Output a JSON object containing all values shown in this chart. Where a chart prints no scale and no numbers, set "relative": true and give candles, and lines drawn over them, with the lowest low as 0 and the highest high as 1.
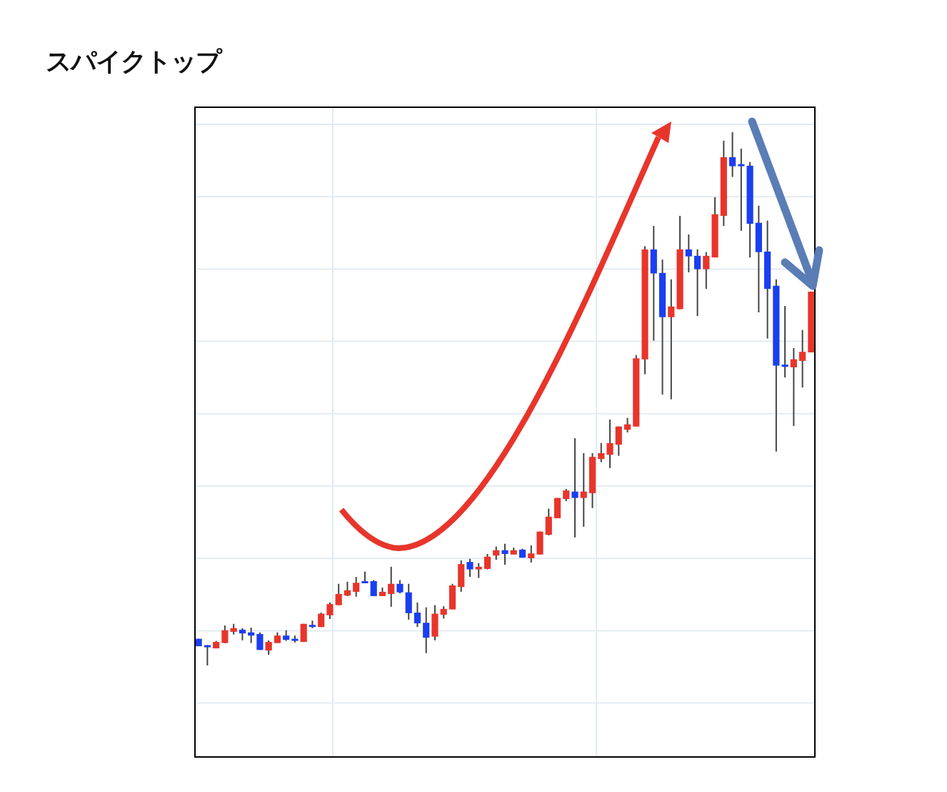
{
  "chart_data": {
    "type": "candlestick",
    "title": "スパイクトップ",
    "relative": true,
    "grid": true,
    "categories": [
      null,
      null,
      null,
      null,
      null,
      null,
      null,
      null,
      null,
      null,
      null,
      null,
      null,
      null,
      null,
      null,
      null,
      null,
      null,
      null,
      null,
      null,
      null,
      null,
      null,
      null,
      null,
      null,
      null,
      null,
      null,
      null,
      null,
      null,
      null,
      null,
      null,
      null,
      null,
      null,
      null,
      null,
      null,
      null,
      null,
      null,
      null,
      null,
      null,
      null,
      null,
      null,
      null,
      null,
      null,
      null,
      null,
      null,
      null,
      null,
      null,
      null,
      null,
      null,
      null,
      null,
      null,
      null,
      null,
      null,
      null
    ],
    "ohlc": [
      [
        0.05,
        0.05,
        0.036,
        0.036
      ],
      [
        0.038,
        0.038,
        0,
        0.034
      ],
      [
        0.032,
        0.046,
        0.032,
        0.044
      ],
      [
        0.042,
        0.075,
        0.042,
        0.066
      ],
      [
        0.063,
        0.078,
        0.058,
        0.07
      ],
      [
        0.067,
        0.07,
        0.047,
        0.06
      ],
      [
        0.062,
        0.071,
        0.042,
        0.056
      ],
      [
        0.059,
        0.062,
        0.029,
        0.029
      ],
      [
        0.028,
        0.047,
        0.02,
        0.044
      ],
      [
        0.042,
        0.062,
        0.042,
        0.056
      ],
      [
        0.056,
        0.066,
        0.046,
        0.048
      ],
      [
        0.05,
        0.056,
        0.043,
        0.046
      ],
      [
        0.044,
        0.078,
        0.044,
        0.078
      ],
      [
        0.075,
        0.084,
        0.07,
        0.072
      ],
      [
        0.072,
        0.099,
        0.072,
        0.097
      ],
      [
        0.094,
        0.118,
        0.087,
        0.115
      ],
      [
        0.113,
        0.153,
        0.113,
        0.134
      ],
      [
        0.131,
        0.157,
        0.13,
        0.141
      ],
      [
        0.138,
        0.166,
        0.129,
        0.155
      ],
      [
        0.158,
        0.176,
        0.154,
        0.154
      ],
      [
        0.158,
        0.16,
        0.13,
        0.13
      ],
      [
        0.13,
        0.146,
        0.13,
        0.138
      ],
      [
        0.134,
        0.185,
        0.11,
        0.153
      ],
      [
        0.153,
        0.16,
        0.135,
        0.137
      ],
      [
        0.137,
        0.153,
        0.086,
        0.098
      ],
      [
        0.099,
        0.118,
        0.072,
        0.079
      ],
      [
        0.08,
        0.109,
        0.023,
        0.052
      ],
      [
        0.054,
        0.113,
        0.047,
        0.097
      ],
      [
        0.095,
        0.111,
        0.088,
        0.106
      ],
      [
        0.105,
        0.153,
        0.105,
        0.15
      ],
      [
        0.147,
        0.197,
        0.138,
        0.19
      ],
      [
        0.194,
        0.2,
        0.166,
        0.18
      ],
      [
        0.18,
        0.192,
        0.164,
        0.185
      ],
      [
        0.181,
        0.209,
        0.18,
        0.204
      ],
      [
        0.206,
        0.223,
        0.198,
        0.216
      ],
      [
        0.216,
        0.228,
        0.189,
        0.209
      ],
      [
        0.208,
        0.221,
        0.208,
        0.216
      ],
      [
        0.217,
        0.219,
        0.202,
        0.202
      ],
      [
        0.201,
        0.225,
        0.193,
        0.21
      ],
      [
        0.208,
        0.251,
        0.208,
        0.251
      ],
      [
        0.245,
        0.294,
        0.244,
        0.279
      ],
      [
        0.276,
        0.314,
        0.276,
        0.314
      ],
      [
        0.312,
        0.331,
        0.308,
        0.328
      ],
      [
        0.326,
        0.426,
        0.24,
        0.314
      ],
      [
        0.314,
        0.398,
        0.26,
        0.326
      ],
      [
        0.323,
        0.398,
        0.295,
        0.391
      ],
      [
        0.387,
        0.417,
        0.381,
        0.398
      ],
      [
        0.395,
        0.461,
        0.37,
        0.417
      ],
      [
        0.414,
        0.448,
        0.393,
        0.448
      ],
      [
        0.442,
        0.464,
        0.437,
        0.452
      ],
      [
        0.448,
        0.582,
        0.448,
        0.576
      ],
      [
        0.574,
        0.786,
        0.546,
        0.78
      ],
      [
        0.78,
        0.824,
        0.609,
        0.735
      ],
      [
        0.736,
        0.761,
        0.508,
        0.653
      ],
      [
        0.653,
        0.724,
        0.499,
        0.673
      ],
      [
        0.668,
        0.843,
        0.668,
        0.78
      ],
      [
        0.78,
        0.808,
        0.737,
        0.767
      ],
      [
        0.768,
        0.78,
        0.655,
        0.743
      ],
      [
        0.743,
        0.775,
        0.706,
        0.768
      ],
      [
        0.765,
        0.878,
        0.765,
        0.846
      ],
      [
        0.843,
        0.984,
        0.824,
        0.953
      ],
      [
        0.953,
        1,
        0.916,
        0.936
      ],
      [
        0.937,
        0.969,
        0.815,
        0.936
      ],
      [
        0.937,
        0.944,
        0.765,
        0.828
      ],
      [
        0.83,
        0.862,
        0.662,
        0.775
      ],
      [
        0.776,
        0.834,
        0.613,
        0.706
      ],
      [
        0.712,
        0.724,
        0.401,
        0.562
      ],
      [
        0.564,
        0.674,
        0.54,
        0.56
      ],
      [
        0.559,
        0.595,
        0.449,
        0.574
      ],
      [
        0.571,
        0.629,
        0.521,
        0.588
      ],
      [
        0.587,
        0.701,
        0.587,
        0.701
      ]
    ],
    "colors": [
      "#1a3ff0",
      "#1a3ff0",
      "#e8352b",
      "#e8352b",
      "#e8352b",
      "#1a3ff0",
      "#1a3ff0",
      "#1a3ff0",
      "#e8352b",
      "#e8352b",
      "#1a3ff0",
      "#1a3ff0",
      "#e8352b",
      "#1a3ff0",
      "#e8352b",
      "#e8352b",
      "#e8352b",
      "#e8352b",
      "#e8352b",
      "#1a3ff0",
      "#1a3ff0",
      "#e8352b",
      "#e8352b",
      "#1a3ff0",
      "#1a3ff0",
      "#1a3ff0",
      "#1a3ff0",
      "#e8352b",
      "#e8352b",
      "#e8352b",
      "#e8352b",
      "#1a3ff0",
      "#e8352b",
      "#e8352b",
      "#e8352b",
      "#1a3ff0",
      "#e8352b",
      "#1a3ff0",
      "#e8352b",
      "#e8352b",
      "#e8352b",
      "#e8352b",
      "#e8352b",
      "#1a3ff0",
      "#e8352b",
      "#e8352b",
      "#e8352b",
      "#e8352b",
      "#e8352b",
      "#e8352b",
      "#e8352b",
      "#e8352b",
      "#1a3ff0",
      "#1a3ff0",
      "#e8352b",
      "#e8352b",
      "#1a3ff0",
      "#1a3ff0",
      "#e8352b",
      "#e8352b",
      "#e8352b",
      "#1a3ff0",
      "#1a3ff0",
      "#1a3ff0",
      "#1a3ff0",
      "#1a3ff0",
      "#1a3ff0",
      "#1a3ff0",
      "#e8352b",
      "#e8352b",
      "#e8352b"
    ]
  }
}
